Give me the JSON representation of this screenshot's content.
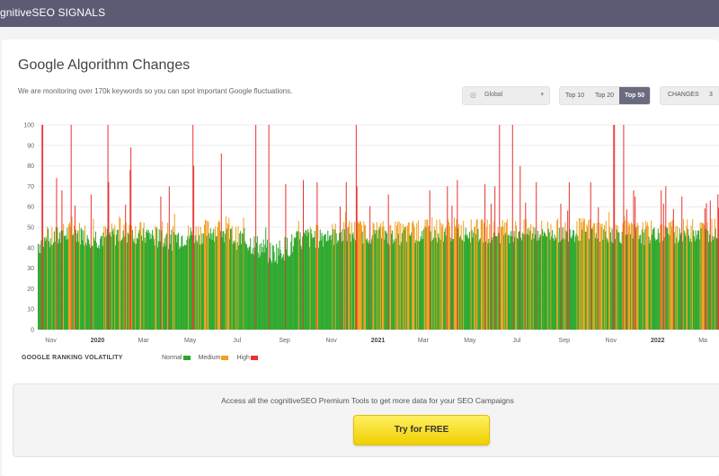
{
  "app": {
    "brand": "gnitiveSEO SIGNALS"
  },
  "page": {
    "title": "Google Algorithm Changes",
    "subtitle": "We are monitoring over 170k keywords so you can spot important Google fluctuations."
  },
  "controls": {
    "region": {
      "icon": "globe-icon",
      "value": "Global"
    },
    "tabs": [
      {
        "label": "Top 10",
        "active": false
      },
      {
        "label": "Top 20",
        "active": false
      },
      {
        "label": "Top 50",
        "active": true
      }
    ],
    "changes": {
      "label": "CHANGES",
      "count": "3"
    }
  },
  "legend": {
    "title": "GOOGLE RANKING VOLATILITY",
    "items": [
      {
        "label": "Normal",
        "color": "#2ca82c"
      },
      {
        "label": "Medium",
        "color": "#f0a020"
      },
      {
        "label": "High",
        "color": "#e8322d"
      }
    ]
  },
  "promo": {
    "text": "Access all the cognitiveSEO Premium Tools to get more data for your SEO Campaigns",
    "button_label": "Try for FREE"
  },
  "chart_data": {
    "type": "bar",
    "title": "",
    "xlabel": "",
    "ylabel": "",
    "ylim": [
      0,
      100
    ],
    "yticks": [
      0,
      10,
      20,
      30,
      40,
      50,
      60,
      70,
      80,
      90,
      100
    ],
    "x_range": [
      "2019-10-15",
      "2022-03-22"
    ],
    "xticks": [
      {
        "date": "2019-11-01",
        "label": "Nov",
        "bold": false
      },
      {
        "date": "2020-01-01",
        "label": "2020",
        "bold": true
      },
      {
        "date": "2020-03-01",
        "label": "Mar",
        "bold": false
      },
      {
        "date": "2020-05-01",
        "label": "May",
        "bold": false
      },
      {
        "date": "2020-07-01",
        "label": "Jul",
        "bold": false
      },
      {
        "date": "2020-09-01",
        "label": "Sep",
        "bold": false
      },
      {
        "date": "2020-11-01",
        "label": "Nov",
        "bold": false
      },
      {
        "date": "2021-01-01",
        "label": "2021",
        "bold": true
      },
      {
        "date": "2021-03-01",
        "label": "Mar",
        "bold": false
      },
      {
        "date": "2021-05-01",
        "label": "May",
        "bold": false
      },
      {
        "date": "2021-07-01",
        "label": "Jul",
        "bold": false
      },
      {
        "date": "2021-09-01",
        "label": "Sep",
        "bold": false
      },
      {
        "date": "2021-11-01",
        "label": "Nov",
        "bold": false
      },
      {
        "date": "2022-01-01",
        "label": "2022",
        "bold": true
      },
      {
        "date": "2022-03-01",
        "label": "Ma",
        "bold": false
      }
    ],
    "thresholds": {
      "normal_max": 50,
      "medium_max": 58
    },
    "baseline": [
      [
        "2019-10-15",
        42
      ],
      [
        "2019-12-01",
        48
      ],
      [
        "2020-01-01",
        45
      ],
      [
        "2020-02-15",
        48
      ],
      [
        "2020-04-01",
        44
      ],
      [
        "2020-06-01",
        49
      ],
      [
        "2020-07-15",
        43
      ],
      [
        "2020-08-15",
        37
      ],
      [
        "2020-10-01",
        45
      ],
      [
        "2020-12-01",
        48
      ],
      [
        "2021-02-01",
        47
      ],
      [
        "2021-04-01",
        49
      ],
      [
        "2021-06-01",
        48
      ],
      [
        "2021-08-01",
        48
      ],
      [
        "2021-10-01",
        49
      ],
      [
        "2021-12-01",
        47
      ],
      [
        "2022-03-22",
        49
      ]
    ],
    "spikes": [
      {
        "date": "2019-10-20",
        "value": 100
      },
      {
        "date": "2019-10-21",
        "value": 100
      },
      {
        "date": "2019-11-08",
        "value": 74
      },
      {
        "date": "2019-11-15",
        "value": 68
      },
      {
        "date": "2019-11-27",
        "value": 100
      },
      {
        "date": "2019-12-23",
        "value": 66
      },
      {
        "date": "2020-01-14",
        "value": 100
      },
      {
        "date": "2020-01-15",
        "value": 72
      },
      {
        "date": "2020-02-06",
        "value": 61
      },
      {
        "date": "2020-02-12",
        "value": 78
      },
      {
        "date": "2020-02-13",
        "value": 89
      },
      {
        "date": "2020-03-23",
        "value": 65
      },
      {
        "date": "2020-04-03",
        "value": 70
      },
      {
        "date": "2020-05-04",
        "value": 100
      },
      {
        "date": "2020-05-05",
        "value": 80
      },
      {
        "date": "2020-06-10",
        "value": 86
      },
      {
        "date": "2020-07-25",
        "value": 100
      },
      {
        "date": "2020-08-11",
        "value": 100
      },
      {
        "date": "2020-09-02",
        "value": 71
      },
      {
        "date": "2020-09-25",
        "value": 73
      },
      {
        "date": "2020-10-13",
        "value": 72
      },
      {
        "date": "2020-11-20",
        "value": 72
      },
      {
        "date": "2020-12-03",
        "value": 100
      },
      {
        "date": "2020-12-04",
        "value": 70
      },
      {
        "date": "2021-01-14",
        "value": 66
      },
      {
        "date": "2021-03-09",
        "value": 68
      },
      {
        "date": "2021-04-01",
        "value": 70
      },
      {
        "date": "2021-04-14",
        "value": 73
      },
      {
        "date": "2021-05-20",
        "value": 71
      },
      {
        "date": "2021-06-02",
        "value": 70
      },
      {
        "date": "2021-06-08",
        "value": 100
      },
      {
        "date": "2021-06-25",
        "value": 100
      },
      {
        "date": "2021-07-05",
        "value": 80
      },
      {
        "date": "2021-07-12",
        "value": 62
      },
      {
        "date": "2021-07-26",
        "value": 72
      },
      {
        "date": "2021-09-07",
        "value": 72
      },
      {
        "date": "2021-10-05",
        "value": 72
      },
      {
        "date": "2021-11-04",
        "value": 100
      },
      {
        "date": "2021-11-05",
        "value": 100
      },
      {
        "date": "2021-11-17",
        "value": 100
      },
      {
        "date": "2021-11-30",
        "value": 68
      },
      {
        "date": "2021-12-02",
        "value": 65
      },
      {
        "date": "2022-01-05",
        "value": 68
      },
      {
        "date": "2022-01-11",
        "value": 70
      },
      {
        "date": "2022-02-01",
        "value": 65
      },
      {
        "date": "2022-03-10",
        "value": 63
      },
      {
        "date": "2022-03-20",
        "value": 66
      }
    ]
  }
}
